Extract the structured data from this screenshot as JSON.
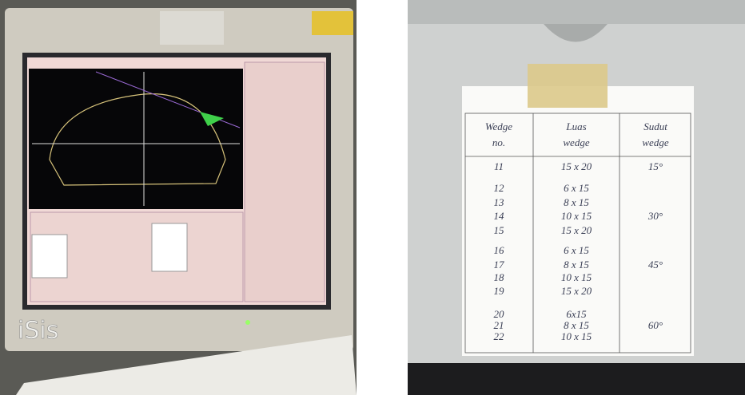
{
  "monitor": {
    "brand": "iSis"
  },
  "table": {
    "headers": [
      "Wedge no.",
      "Luas wedge",
      "Sudut wedge"
    ],
    "rows": [
      {
        "no": "11",
        "luas": "15 x 20",
        "sudut": "15°"
      },
      {
        "no": "12",
        "luas": "6 x 15"
      },
      {
        "no": "13",
        "luas": "8 x 15"
      },
      {
        "no": "14",
        "luas": "10 x 15",
        "sudut": "30°"
      },
      {
        "no": "15",
        "luas": "15 x 20"
      },
      {
        "no": "16",
        "luas": "6 x 15"
      },
      {
        "no": "17",
        "luas": "8 x 15",
        "sudut": "45°"
      },
      {
        "no": "18",
        "luas": "10 x 15"
      },
      {
        "no": "19",
        "luas": "15 x 20"
      },
      {
        "no": "20",
        "luas": "6x15"
      },
      {
        "no": "21",
        "luas": "8 x 15",
        "sudut": "60°"
      },
      {
        "no": "22",
        "luas": "10 x 15"
      }
    ]
  }
}
